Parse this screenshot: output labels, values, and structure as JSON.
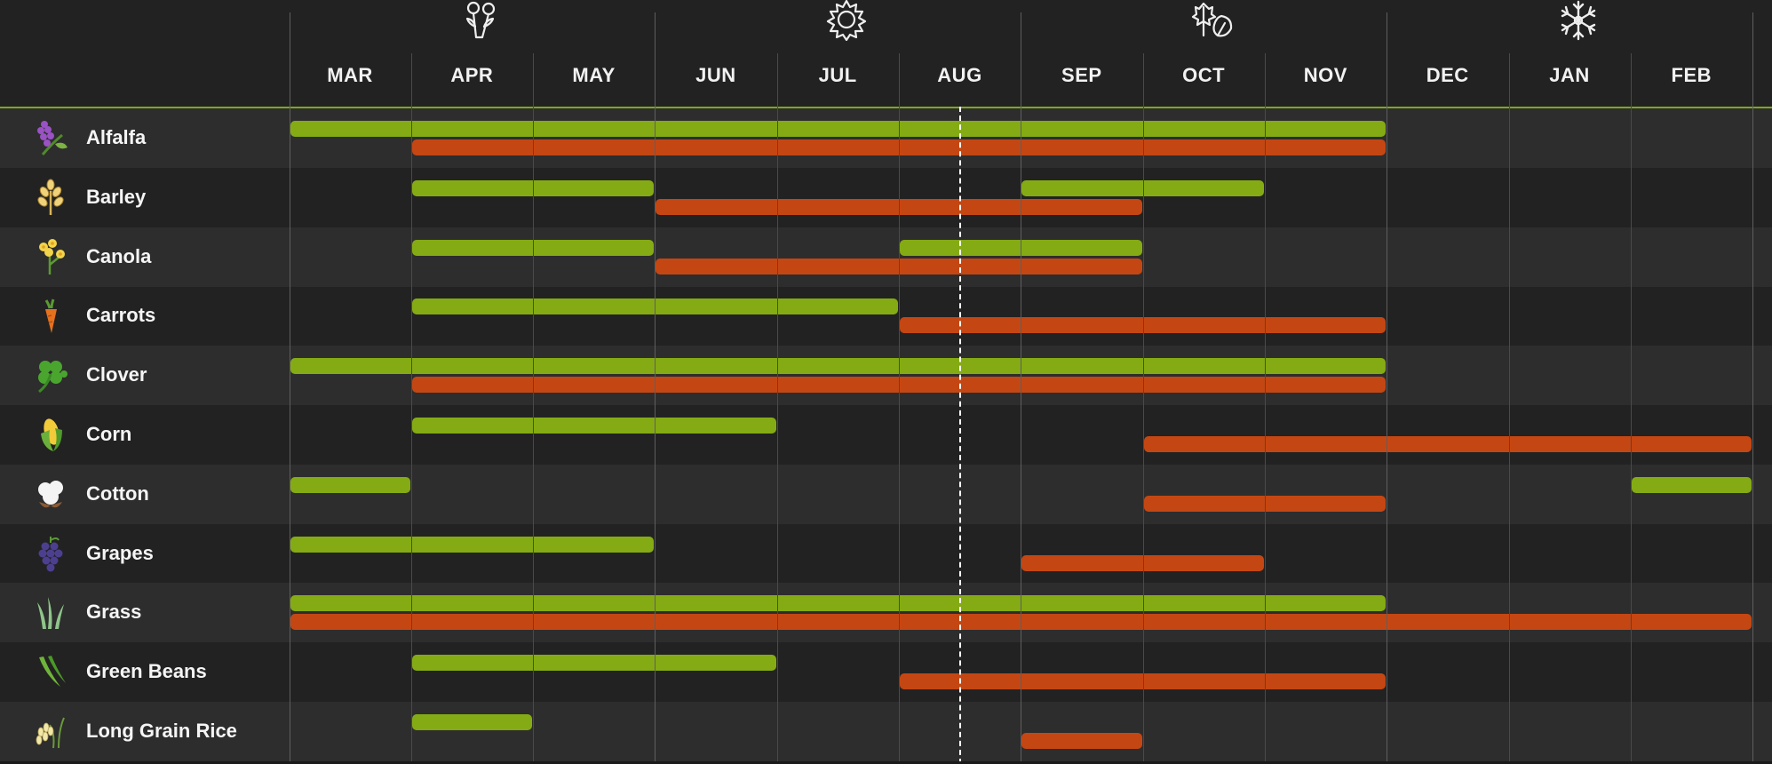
{
  "seasons": [
    {
      "name": "spring",
      "icon": "flowers-icon",
      "month_index": 1.5
    },
    {
      "name": "summer",
      "icon": "sun-icon",
      "month_index": 4.5
    },
    {
      "name": "autumn",
      "icon": "leaves-icon",
      "month_index": 7.5
    },
    {
      "name": "winter",
      "icon": "snowflake-icon",
      "month_index": 10.5
    }
  ],
  "months": [
    "MAR",
    "APR",
    "MAY",
    "JUN",
    "JUL",
    "AUG",
    "SEP",
    "OCT",
    "NOV",
    "DEC",
    "JAN",
    "FEB"
  ],
  "current_month_position": 5.5,
  "colors": {
    "plant": "#84ab14",
    "harvest": "#c44713",
    "accent_line": "#7fa81c",
    "background": "#222222",
    "row_alt": "#2d2d2d"
  },
  "crops": [
    {
      "name": "Alfalfa",
      "icon": "alfalfa-icon",
      "plant": [
        [
          0,
          9
        ]
      ],
      "harvest": [
        [
          1,
          9
        ]
      ]
    },
    {
      "name": "Barley",
      "icon": "barley-icon",
      "plant": [
        [
          1,
          3
        ],
        [
          6,
          8
        ]
      ],
      "harvest": [
        [
          3,
          7
        ]
      ]
    },
    {
      "name": "Canola",
      "icon": "canola-icon",
      "plant": [
        [
          1,
          3
        ],
        [
          5,
          7
        ]
      ],
      "harvest": [
        [
          3,
          7
        ]
      ]
    },
    {
      "name": "Carrots",
      "icon": "carrot-icon",
      "plant": [
        [
          1,
          5
        ]
      ],
      "harvest": [
        [
          5,
          9
        ]
      ]
    },
    {
      "name": "Clover",
      "icon": "clover-icon",
      "plant": [
        [
          0,
          9
        ]
      ],
      "harvest": [
        [
          1,
          9
        ]
      ]
    },
    {
      "name": "Corn",
      "icon": "corn-icon",
      "plant": [
        [
          1,
          4
        ]
      ],
      "harvest": [
        [
          7,
          12
        ]
      ]
    },
    {
      "name": "Cotton",
      "icon": "cotton-icon",
      "plant": [
        [
          0,
          1
        ],
        [
          11,
          12
        ]
      ],
      "harvest": [
        [
          7,
          9
        ]
      ]
    },
    {
      "name": "Grapes",
      "icon": "grapes-icon",
      "plant": [
        [
          0,
          3
        ]
      ],
      "harvest": [
        [
          6,
          8
        ]
      ]
    },
    {
      "name": "Grass",
      "icon": "grass-icon",
      "plant": [
        [
          0,
          9
        ]
      ],
      "harvest": [
        [
          0,
          12
        ]
      ]
    },
    {
      "name": "Green Beans",
      "icon": "green-beans-icon",
      "plant": [
        [
          1,
          4
        ]
      ],
      "harvest": [
        [
          5,
          9
        ]
      ]
    },
    {
      "name": "Long Grain Rice",
      "icon": "rice-icon",
      "plant": [
        [
          1,
          2
        ]
      ],
      "harvest": [
        [
          6,
          7
        ]
      ]
    }
  ]
}
